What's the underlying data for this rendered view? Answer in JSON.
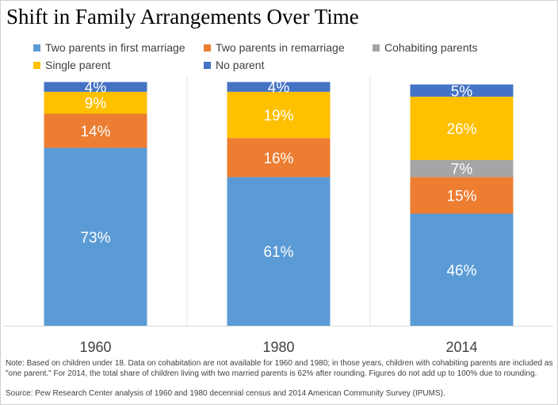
{
  "title": "Shift in Family Arrangements Over Time",
  "note": "Note: Based on children under 18. Data on cohabitation are not available for 1960 and 1980; in those years, children with cohabiting parents are included as \"one parent.\" For 2014, the total share of children living with two married parents is 62% after rounding. Figures do not add up to 100% due to rounding.",
  "source": "Source: Pew Research Center analysis of 1960 and 1980 decennial census and 2014 American Community Survey (IPUMS).",
  "chart_data": {
    "type": "bar",
    "stacked": true,
    "title": "Shift in Family Arrangements Over Time",
    "categories": [
      "1960",
      "1980",
      "2014"
    ],
    "ylim": [
      0,
      100
    ],
    "grid": false,
    "legend_position": "top",
    "series": [
      {
        "name": "Two parents in first marriage",
        "color": "#5b9bd5",
        "values": [
          73,
          61,
          46
        ],
        "labels": [
          "73%",
          "61%",
          "46%"
        ]
      },
      {
        "name": "Two parents in remarriage",
        "color": "#ed7d31",
        "values": [
          14,
          16,
          15
        ],
        "labels": [
          "14%",
          "16%",
          "15%"
        ]
      },
      {
        "name": "Cohabiting parents",
        "color": "#a5a5a5",
        "values": [
          0,
          0,
          7
        ],
        "labels": [
          "",
          "",
          "7%"
        ]
      },
      {
        "name": "Single parent",
        "color": "#ffc000",
        "values": [
          9,
          19,
          26
        ],
        "labels": [
          "9%",
          "19%",
          "26%"
        ]
      },
      {
        "name": "No parent",
        "color": "#4472c4",
        "values": [
          4,
          4,
          5
        ],
        "labels": [
          "4%",
          "4%",
          "5%"
        ]
      }
    ]
  }
}
